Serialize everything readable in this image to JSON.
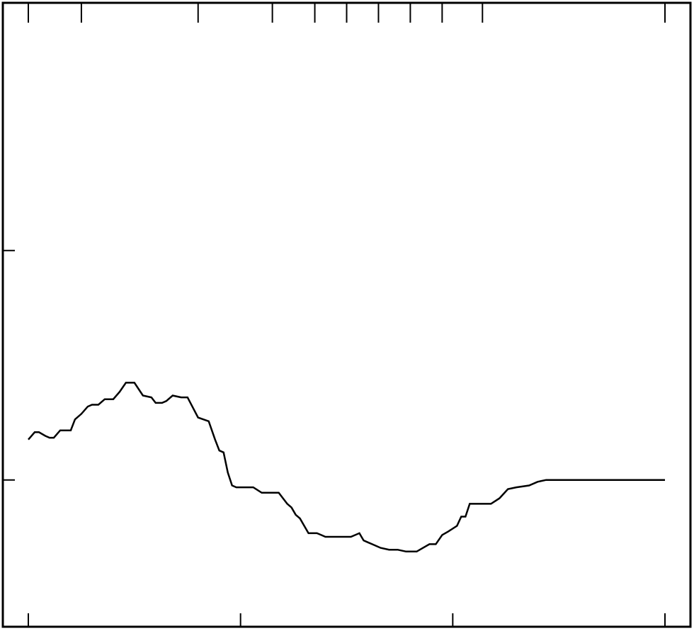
{
  "chart_data": {
    "type": "line",
    "title": "",
    "xlabel": "",
    "ylabel": "",
    "xlim": [
      0,
      300
    ],
    "ylim": [
      -0.8,
      2.6
    ],
    "grid": false,
    "colors": {
      "line": "#000000",
      "frame": "#000000",
      "background": "#ffffff"
    },
    "x_ticks_bottom": [
      0,
      100,
      200,
      300
    ],
    "x_ticks_top": [
      0,
      25,
      80,
      115,
      135,
      150,
      165,
      180,
      195,
      214,
      300
    ],
    "y_ticks": [
      0,
      1.25
    ],
    "series": [
      {
        "x": [
          0,
          3,
          5,
          8,
          10,
          12,
          15,
          18,
          20,
          22,
          25,
          28,
          30,
          33,
          36,
          40,
          43,
          46,
          50,
          54,
          58,
          60,
          63,
          65,
          68,
          72,
          75,
          80,
          85,
          88,
          90,
          92,
          94,
          96,
          98,
          100,
          102,
          106,
          110,
          114,
          118,
          120,
          122,
          124,
          126,
          128,
          130,
          132,
          134,
          136,
          138,
          140,
          144,
          148,
          152,
          156,
          158,
          160,
          162,
          164,
          166,
          170,
          174,
          178,
          180,
          183,
          186,
          189,
          192,
          195,
          198,
          202,
          204,
          206,
          208,
          212,
          216,
          218,
          222,
          226,
          230,
          236,
          240,
          244,
          248,
          252,
          258,
          264,
          270,
          278,
          286,
          300
        ],
        "y": [
          0.22,
          0.26,
          0.26,
          0.24,
          0.23,
          0.23,
          0.27,
          0.27,
          0.27,
          0.33,
          0.36,
          0.4,
          0.41,
          0.41,
          0.44,
          0.44,
          0.48,
          0.53,
          0.53,
          0.46,
          0.45,
          0.42,
          0.42,
          0.43,
          0.46,
          0.45,
          0.45,
          0.34,
          0.32,
          0.22,
          0.16,
          0.15,
          0.04,
          -0.03,
          -0.04,
          -0.04,
          -0.04,
          -0.04,
          -0.07,
          -0.07,
          -0.07,
          -0.1,
          -0.13,
          -0.15,
          -0.19,
          -0.21,
          -0.25,
          -0.29,
          -0.29,
          -0.29,
          -0.3,
          -0.31,
          -0.31,
          -0.31,
          -0.31,
          -0.29,
          -0.33,
          -0.34,
          -0.35,
          -0.36,
          -0.37,
          -0.38,
          -0.38,
          -0.39,
          -0.39,
          -0.39,
          -0.37,
          -0.35,
          -0.35,
          -0.3,
          -0.28,
          -0.25,
          -0.2,
          -0.2,
          -0.13,
          -0.13,
          -0.13,
          -0.13,
          -0.1,
          -0.05,
          -0.04,
          -0.03,
          -0.01,
          0.0,
          0.0,
          0.0,
          0.0,
          0.0,
          0.0,
          0.0,
          0.0,
          0.0
        ]
      }
    ]
  }
}
